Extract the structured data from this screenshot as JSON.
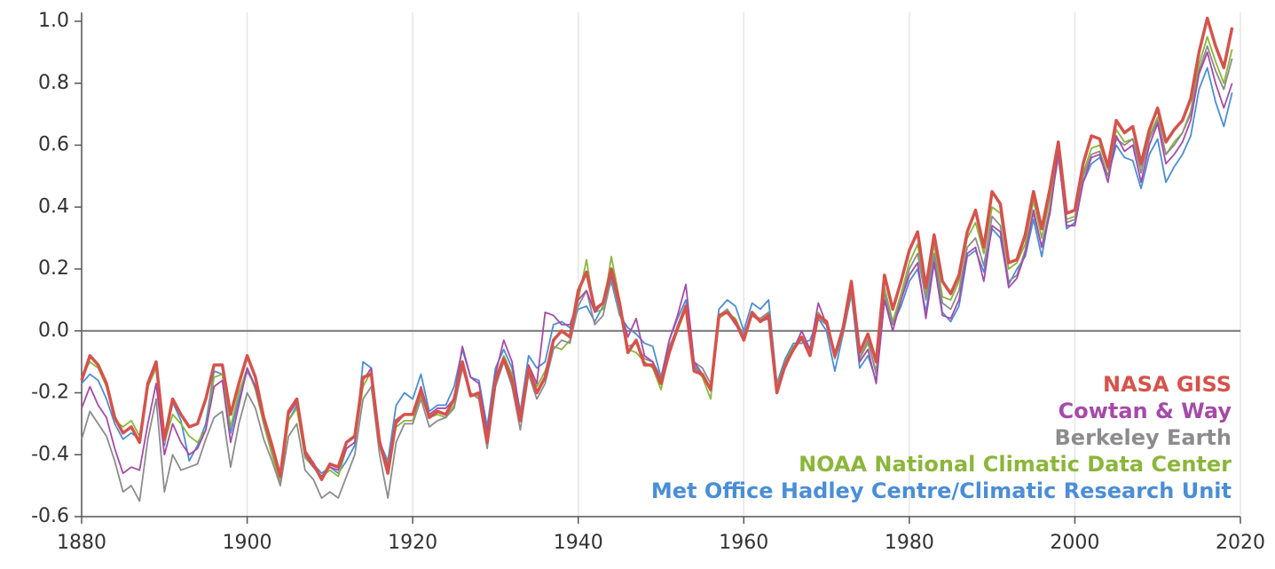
{
  "chart_data": {
    "type": "line",
    "x": [
      1880,
      1881,
      1882,
      1883,
      1884,
      1885,
      1886,
      1887,
      1888,
      1889,
      1890,
      1891,
      1892,
      1893,
      1894,
      1895,
      1896,
      1897,
      1898,
      1899,
      1900,
      1901,
      1902,
      1903,
      1904,
      1905,
      1906,
      1907,
      1908,
      1909,
      1910,
      1911,
      1912,
      1913,
      1914,
      1915,
      1916,
      1917,
      1918,
      1919,
      1920,
      1921,
      1922,
      1923,
      1924,
      1925,
      1926,
      1927,
      1928,
      1929,
      1930,
      1931,
      1932,
      1933,
      1934,
      1935,
      1936,
      1937,
      1938,
      1939,
      1940,
      1941,
      1942,
      1943,
      1944,
      1945,
      1946,
      1947,
      1948,
      1949,
      1950,
      1951,
      1952,
      1953,
      1954,
      1955,
      1956,
      1957,
      1958,
      1959,
      1960,
      1961,
      1962,
      1963,
      1964,
      1965,
      1966,
      1967,
      1968,
      1969,
      1970,
      1971,
      1972,
      1973,
      1974,
      1975,
      1976,
      1977,
      1978,
      1979,
      1980,
      1981,
      1982,
      1983,
      1984,
      1985,
      1986,
      1987,
      1988,
      1989,
      1990,
      1991,
      1992,
      1993,
      1994,
      1995,
      1996,
      1997,
      1998,
      1999,
      2000,
      2001,
      2002,
      2003,
      2004,
      2005,
      2006,
      2007,
      2008,
      2009,
      2010,
      2011,
      2012,
      2013,
      2014,
      2015,
      2016,
      2017,
      2018,
      2019
    ],
    "series": [
      {
        "name": "NASA GISS",
        "color": "#d6524b",
        "values": [
          -0.16,
          -0.08,
          -0.11,
          -0.17,
          -0.28,
          -0.33,
          -0.31,
          -0.36,
          -0.17,
          -0.1,
          -0.35,
          -0.22,
          -0.27,
          -0.31,
          -0.3,
          -0.22,
          -0.11,
          -0.11,
          -0.27,
          -0.17,
          -0.08,
          -0.15,
          -0.28,
          -0.37,
          -0.47,
          -0.26,
          -0.22,
          -0.39,
          -0.43,
          -0.48,
          -0.43,
          -0.44,
          -0.36,
          -0.34,
          -0.15,
          -0.14,
          -0.36,
          -0.46,
          -0.29,
          -0.27,
          -0.27,
          -0.19,
          -0.28,
          -0.26,
          -0.27,
          -0.22,
          -0.1,
          -0.21,
          -0.2,
          -0.36,
          -0.16,
          -0.09,
          -0.16,
          -0.29,
          -0.12,
          -0.2,
          -0.15,
          -0.03,
          0.0,
          -0.02,
          0.13,
          0.19,
          0.07,
          0.09,
          0.2,
          0.09,
          -0.07,
          -0.03,
          -0.11,
          -0.11,
          -0.17,
          -0.07,
          0.01,
          0.08,
          -0.13,
          -0.14,
          -0.19,
          0.05,
          0.06,
          0.03,
          -0.03,
          0.06,
          0.03,
          0.05,
          -0.2,
          -0.11,
          -0.06,
          -0.02,
          -0.08,
          0.05,
          0.03,
          -0.08,
          0.01,
          0.16,
          -0.07,
          -0.01,
          -0.1,
          0.18,
          0.07,
          0.16,
          0.26,
          0.32,
          0.14,
          0.31,
          0.16,
          0.12,
          0.18,
          0.32,
          0.39,
          0.27,
          0.45,
          0.41,
          0.22,
          0.23,
          0.31,
          0.45,
          0.33,
          0.46,
          0.61,
          0.38,
          0.39,
          0.54,
          0.63,
          0.62,
          0.53,
          0.68,
          0.64,
          0.66,
          0.54,
          0.65,
          0.72,
          0.61,
          0.65,
          0.68,
          0.75,
          0.9,
          1.01,
          0.92,
          0.85,
          0.98
        ]
      },
      {
        "name": "Cowtan & Way",
        "color": "#a64aa8",
        "values": [
          -0.25,
          -0.18,
          -0.24,
          -0.28,
          -0.38,
          -0.46,
          -0.44,
          -0.45,
          -0.3,
          -0.17,
          -0.4,
          -0.3,
          -0.36,
          -0.4,
          -0.38,
          -0.32,
          -0.18,
          -0.16,
          -0.36,
          -0.24,
          -0.12,
          -0.18,
          -0.29,
          -0.38,
          -0.46,
          -0.27,
          -0.23,
          -0.4,
          -0.44,
          -0.47,
          -0.44,
          -0.45,
          -0.38,
          -0.36,
          -0.16,
          -0.12,
          -0.35,
          -0.44,
          -0.3,
          -0.27,
          -0.27,
          -0.18,
          -0.27,
          -0.25,
          -0.25,
          -0.22,
          -0.05,
          -0.15,
          -0.17,
          -0.33,
          -0.14,
          -0.03,
          -0.1,
          -0.27,
          -0.11,
          -0.17,
          0.06,
          0.05,
          0.02,
          0.02,
          0.1,
          0.13,
          0.06,
          0.09,
          0.18,
          0.08,
          -0.02,
          0.04,
          -0.08,
          -0.1,
          -0.16,
          -0.03,
          0.05,
          0.15,
          -0.1,
          -0.14,
          -0.19,
          0.05,
          0.06,
          0.02,
          -0.02,
          0.05,
          0.03,
          0.04,
          -0.19,
          -0.12,
          -0.06,
          0.0,
          -0.06,
          0.09,
          0.02,
          -0.08,
          0.0,
          0.14,
          -0.1,
          -0.06,
          -0.17,
          0.1,
          0.0,
          0.1,
          0.18,
          0.22,
          0.04,
          0.22,
          0.05,
          0.04,
          0.1,
          0.25,
          0.27,
          0.16,
          0.34,
          0.32,
          0.14,
          0.17,
          0.25,
          0.39,
          0.27,
          0.38,
          0.58,
          0.34,
          0.34,
          0.48,
          0.56,
          0.57,
          0.48,
          0.63,
          0.58,
          0.6,
          0.48,
          0.6,
          0.67,
          0.54,
          0.57,
          0.61,
          0.68,
          0.83,
          0.9,
          0.8,
          0.72,
          0.8
        ]
      },
      {
        "name": "Berkeley Earth",
        "color": "#8c8c8c",
        "values": [
          -0.35,
          -0.26,
          -0.3,
          -0.34,
          -0.42,
          -0.52,
          -0.5,
          -0.55,
          -0.35,
          -0.22,
          -0.52,
          -0.4,
          -0.45,
          -0.44,
          -0.43,
          -0.35,
          -0.28,
          -0.26,
          -0.44,
          -0.3,
          -0.2,
          -0.25,
          -0.35,
          -0.42,
          -0.5,
          -0.34,
          -0.3,
          -0.45,
          -0.48,
          -0.54,
          -0.52,
          -0.54,
          -0.47,
          -0.4,
          -0.22,
          -0.18,
          -0.4,
          -0.54,
          -0.36,
          -0.3,
          -0.3,
          -0.22,
          -0.31,
          -0.29,
          -0.28,
          -0.25,
          -0.12,
          -0.2,
          -0.22,
          -0.38,
          -0.18,
          -0.1,
          -0.18,
          -0.32,
          -0.14,
          -0.22,
          -0.17,
          -0.06,
          -0.03,
          -0.04,
          0.08,
          0.13,
          0.02,
          0.05,
          0.17,
          0.06,
          -0.05,
          -0.04,
          -0.09,
          -0.1,
          -0.15,
          -0.05,
          0.01,
          0.07,
          -0.1,
          -0.12,
          -0.17,
          0.05,
          0.07,
          0.03,
          -0.01,
          0.05,
          0.04,
          0.06,
          -0.17,
          -0.12,
          -0.06,
          -0.02,
          -0.06,
          0.04,
          0.02,
          -0.09,
          -0.01,
          0.12,
          -0.09,
          -0.03,
          -0.14,
          0.12,
          0.02,
          0.1,
          0.2,
          0.25,
          0.1,
          0.25,
          0.09,
          0.07,
          0.13,
          0.27,
          0.3,
          0.21,
          0.37,
          0.34,
          0.16,
          0.18,
          0.26,
          0.38,
          0.27,
          0.4,
          0.56,
          0.35,
          0.36,
          0.5,
          0.57,
          0.58,
          0.5,
          0.62,
          0.6,
          0.62,
          0.51,
          0.62,
          0.68,
          0.57,
          0.6,
          0.64,
          0.7,
          0.84,
          0.92,
          0.84,
          0.78,
          0.88
        ]
      },
      {
        "name": "NOAA National Climatic Data Center",
        "color": "#8bb63a",
        "values": [
          -0.15,
          -0.1,
          -0.12,
          -0.18,
          -0.29,
          -0.31,
          -0.29,
          -0.34,
          -0.18,
          -0.12,
          -0.36,
          -0.27,
          -0.3,
          -0.34,
          -0.36,
          -0.32,
          -0.15,
          -0.14,
          -0.31,
          -0.2,
          -0.12,
          -0.19,
          -0.3,
          -0.4,
          -0.49,
          -0.29,
          -0.25,
          -0.41,
          -0.44,
          -0.47,
          -0.45,
          -0.47,
          -0.38,
          -0.36,
          -0.18,
          -0.13,
          -0.36,
          -0.43,
          -0.31,
          -0.29,
          -0.29,
          -0.21,
          -0.28,
          -0.27,
          -0.28,
          -0.24,
          -0.12,
          -0.21,
          -0.21,
          -0.33,
          -0.15,
          -0.08,
          -0.14,
          -0.26,
          -0.13,
          -0.18,
          -0.13,
          -0.05,
          -0.06,
          -0.03,
          0.1,
          0.23,
          0.06,
          0.07,
          0.24,
          0.1,
          -0.06,
          -0.07,
          -0.1,
          -0.12,
          -0.19,
          -0.07,
          0.0,
          0.07,
          -0.12,
          -0.15,
          -0.22,
          0.04,
          0.06,
          0.04,
          -0.02,
          0.05,
          0.04,
          0.06,
          -0.19,
          -0.1,
          -0.05,
          -0.03,
          -0.06,
          0.06,
          0.02,
          -0.07,
          0.0,
          0.13,
          -0.09,
          -0.04,
          -0.13,
          0.14,
          0.03,
          0.12,
          0.22,
          0.28,
          0.12,
          0.28,
          0.11,
          0.1,
          0.16,
          0.3,
          0.35,
          0.25,
          0.4,
          0.38,
          0.2,
          0.22,
          0.28,
          0.42,
          0.3,
          0.43,
          0.59,
          0.36,
          0.37,
          0.51,
          0.59,
          0.6,
          0.52,
          0.65,
          0.61,
          0.62,
          0.53,
          0.63,
          0.69,
          0.57,
          0.61,
          0.64,
          0.71,
          0.86,
          0.95,
          0.87,
          0.8,
          0.91
        ]
      },
      {
        "name": "Met Office Hadley Centre/Climatic Research Unit",
        "color": "#4a8ed6",
        "values": [
          -0.17,
          -0.14,
          -0.16,
          -0.22,
          -0.3,
          -0.35,
          -0.33,
          -0.35,
          -0.18,
          -0.12,
          -0.37,
          -0.23,
          -0.29,
          -0.42,
          -0.37,
          -0.3,
          -0.13,
          -0.14,
          -0.33,
          -0.22,
          -0.13,
          -0.18,
          -0.3,
          -0.4,
          -0.46,
          -0.29,
          -0.24,
          -0.41,
          -0.43,
          -0.46,
          -0.44,
          -0.46,
          -0.42,
          -0.37,
          -0.1,
          -0.12,
          -0.36,
          -0.42,
          -0.24,
          -0.2,
          -0.22,
          -0.14,
          -0.26,
          -0.24,
          -0.24,
          -0.18,
          -0.06,
          -0.15,
          -0.16,
          -0.31,
          -0.12,
          -0.06,
          -0.12,
          -0.26,
          -0.08,
          -0.12,
          -0.1,
          0.02,
          0.03,
          0.01,
          0.07,
          0.08,
          0.03,
          0.08,
          0.16,
          0.05,
          0.01,
          -0.01,
          -0.04,
          -0.05,
          -0.15,
          -0.03,
          0.04,
          0.1,
          -0.11,
          -0.15,
          -0.18,
          0.07,
          0.1,
          0.08,
          0.0,
          0.09,
          0.07,
          0.1,
          -0.17,
          -0.09,
          -0.04,
          -0.04,
          -0.03,
          0.04,
          0.0,
          -0.13,
          -0.01,
          0.12,
          -0.12,
          -0.08,
          -0.16,
          0.1,
          0.02,
          0.08,
          0.16,
          0.2,
          0.06,
          0.24,
          0.06,
          0.03,
          0.08,
          0.24,
          0.26,
          0.19,
          0.33,
          0.3,
          0.15,
          0.2,
          0.24,
          0.36,
          0.24,
          0.39,
          0.58,
          0.33,
          0.35,
          0.48,
          0.54,
          0.56,
          0.5,
          0.6,
          0.56,
          0.55,
          0.46,
          0.57,
          0.62,
          0.48,
          0.53,
          0.57,
          0.63,
          0.78,
          0.85,
          0.74,
          0.66,
          0.77
        ]
      }
    ],
    "xlim": [
      1880,
      2020
    ],
    "xticks": [
      1880,
      1900,
      1920,
      1940,
      1960,
      1980,
      2000,
      2020
    ],
    "ylim": [
      -0.6,
      1.0
    ],
    "yticks": [
      -0.6,
      -0.4,
      -0.2,
      {
        "value": 0,
        "label": "0.0"
      },
      0.2,
      0.4,
      0.6,
      0.8,
      {
        "value": 1,
        "label": "1.0"
      }
    ],
    "grid": "x",
    "legend": "lower right"
  }
}
